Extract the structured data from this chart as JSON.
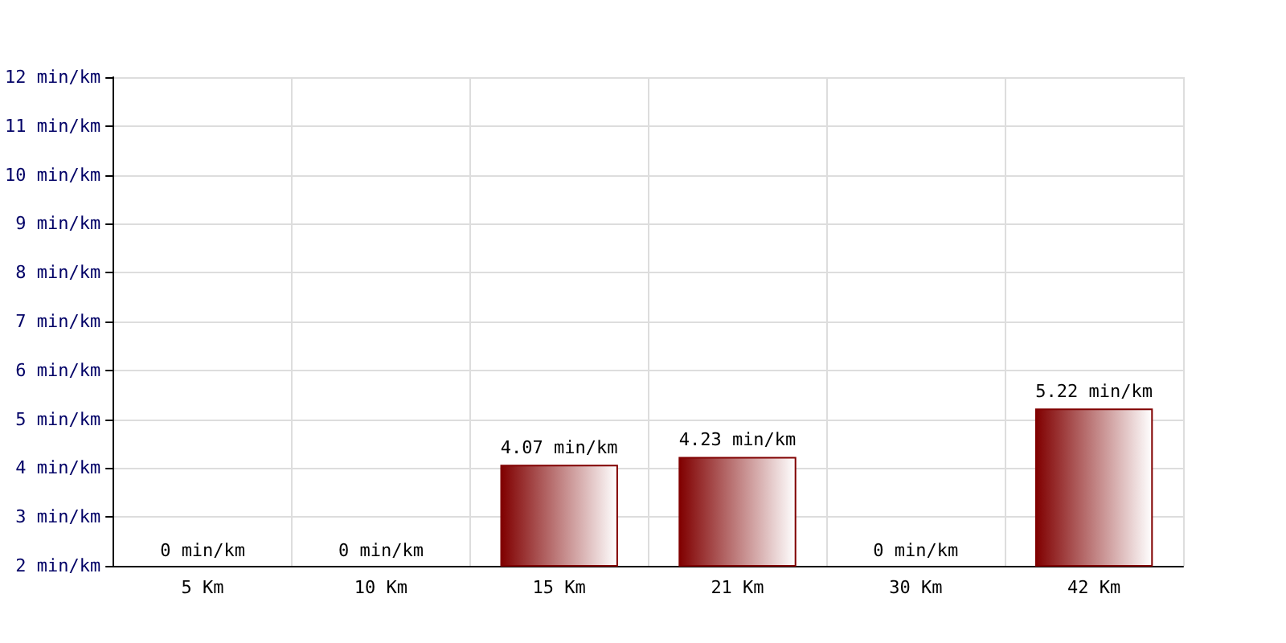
{
  "chart_data": {
    "type": "bar",
    "categories": [
      "5 Km",
      "10 Km",
      "15 Km",
      "21 Km",
      "30 Km",
      "42 Km"
    ],
    "values": [
      null,
      null,
      4.07,
      4.23,
      null,
      5.22
    ],
    "value_labels": [
      "0 min/km",
      "0 min/km",
      "4.07 min/km",
      "4.23 min/km",
      "0 min/km",
      "5.22 min/km"
    ],
    "color": "#800000",
    "ylim": [
      2,
      12
    ],
    "yticks": [
      {
        "value": 2,
        "label": "2 min/km"
      },
      {
        "value": 3,
        "label": "3 min/km"
      },
      {
        "value": 4,
        "label": "4 min/km"
      },
      {
        "value": 5,
        "label": "5 min/km"
      },
      {
        "value": 6,
        "label": "6 min/km"
      },
      {
        "value": 7,
        "label": "7 min/km"
      },
      {
        "value": 8,
        "label": "8 min/km"
      },
      {
        "value": 9,
        "label": "9 min/km"
      },
      {
        "value": 10,
        "label": "10 min/km"
      },
      {
        "value": 11,
        "label": "11 min/km"
      },
      {
        "value": 12,
        "label": "12 min/km"
      }
    ],
    "grid": true
  }
}
